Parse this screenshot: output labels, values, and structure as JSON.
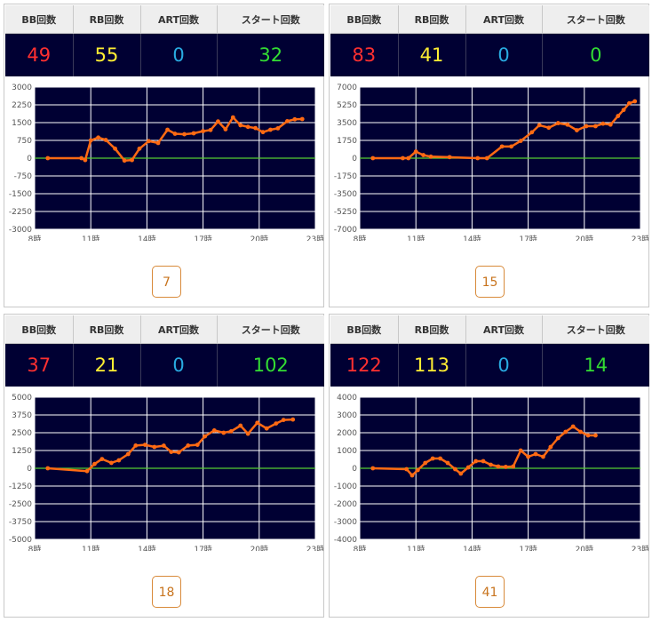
{
  "headers": {
    "bb": "BB回数",
    "rb": "RB回数",
    "art": "ART回数",
    "start": "スタート回数"
  },
  "colors": {
    "plot_bg": "#000033",
    "line": "#ff6a13",
    "zero_line": "#55cc33",
    "bb": "#ff3030",
    "rb": "#ffee33",
    "art": "#29abe2",
    "start": "#33dd33"
  },
  "panels": [
    {
      "bb": "49",
      "rb": "55",
      "art": "0",
      "start": "32",
      "page": "7"
    },
    {
      "bb": "83",
      "rb": "41",
      "art": "0",
      "start": "0",
      "page": "15"
    },
    {
      "bb": "37",
      "rb": "21",
      "art": "0",
      "start": "102",
      "page": "18"
    },
    {
      "bb": "122",
      "rb": "113",
      "art": "0",
      "start": "14",
      "page": "41"
    }
  ],
  "chart_data": [
    {
      "type": "line",
      "x_ticks": [
        "8時",
        "11時",
        "14時",
        "17時",
        "20時",
        "23時"
      ],
      "xlim": [
        8,
        23
      ],
      "y_ticks": [
        "3000",
        "2250",
        "1500",
        "750",
        "0",
        "-750",
        "-1500",
        "-2250",
        "-3000"
      ],
      "ylim": [
        -3000,
        3000
      ],
      "series": [
        {
          "points": [
            [
              8.7,
              0
            ],
            [
              10.5,
              0
            ],
            [
              10.7,
              -80
            ],
            [
              11.0,
              750
            ],
            [
              11.4,
              870
            ],
            [
              11.8,
              770
            ],
            [
              12.3,
              400
            ],
            [
              12.8,
              -100
            ],
            [
              13.2,
              -80
            ],
            [
              13.6,
              400
            ],
            [
              14.1,
              720
            ],
            [
              14.6,
              640
            ],
            [
              15.1,
              1200
            ],
            [
              15.5,
              1030
            ],
            [
              16.0,
              1010
            ],
            [
              16.5,
              1050
            ],
            [
              17.0,
              1140
            ],
            [
              17.4,
              1190
            ],
            [
              17.8,
              1550
            ],
            [
              18.2,
              1220
            ],
            [
              18.6,
              1720
            ],
            [
              19.0,
              1390
            ],
            [
              19.4,
              1320
            ],
            [
              19.8,
              1270
            ],
            [
              20.2,
              1100
            ],
            [
              20.6,
              1200
            ],
            [
              21.0,
              1260
            ],
            [
              21.5,
              1560
            ],
            [
              21.9,
              1640
            ],
            [
              22.3,
              1650
            ]
          ]
        }
      ]
    },
    {
      "type": "line",
      "x_ticks": [
        "8時",
        "11時",
        "14時",
        "17時",
        "20時",
        "23時"
      ],
      "xlim": [
        8,
        23
      ],
      "y_ticks": [
        "7000",
        "5250",
        "3500",
        "1750",
        "0",
        "-1750",
        "-3500",
        "-5250",
        "-7000"
      ],
      "ylim": [
        -7000,
        7000
      ],
      "series": [
        {
          "points": [
            [
              8.7,
              0
            ],
            [
              10.3,
              0
            ],
            [
              10.6,
              0
            ],
            [
              11.0,
              650
            ],
            [
              11.4,
              300
            ],
            [
              11.8,
              150
            ],
            [
              12.8,
              100
            ],
            [
              14.3,
              0
            ],
            [
              14.8,
              0
            ],
            [
              15.6,
              1150
            ],
            [
              16.1,
              1150
            ],
            [
              16.6,
              1700
            ],
            [
              17.2,
              2550
            ],
            [
              17.6,
              3250
            ],
            [
              18.1,
              3000
            ],
            [
              18.6,
              3450
            ],
            [
              19.1,
              3300
            ],
            [
              19.6,
              2750
            ],
            [
              20.1,
              3150
            ],
            [
              20.6,
              3150
            ],
            [
              21.0,
              3400
            ],
            [
              21.4,
              3300
            ],
            [
              21.8,
              4150
            ],
            [
              22.1,
              4750
            ],
            [
              22.4,
              5400
            ],
            [
              22.7,
              5600
            ]
          ]
        }
      ]
    },
    {
      "type": "line",
      "x_ticks": [
        "8時",
        "11時",
        "14時",
        "17時",
        "20時",
        "23時"
      ],
      "xlim": [
        8,
        23
      ],
      "y_ticks": [
        "5000",
        "3750",
        "2500",
        "1250",
        "0",
        "-1250",
        "-2500",
        "-3750",
        "-5000"
      ],
      "ylim": [
        -5000,
        5000
      ],
      "series": [
        {
          "points": [
            [
              8.7,
              0
            ],
            [
              10.8,
              -200
            ],
            [
              11.2,
              300
            ],
            [
              11.6,
              650
            ],
            [
              12.1,
              380
            ],
            [
              12.5,
              560
            ],
            [
              13.0,
              1000
            ],
            [
              13.4,
              1600
            ],
            [
              13.9,
              1650
            ],
            [
              14.4,
              1500
            ],
            [
              14.9,
              1590
            ],
            [
              15.3,
              1150
            ],
            [
              15.7,
              1120
            ],
            [
              16.2,
              1600
            ],
            [
              16.7,
              1650
            ],
            [
              17.1,
              2250
            ],
            [
              17.6,
              2660
            ],
            [
              18.1,
              2500
            ],
            [
              18.5,
              2600
            ],
            [
              19.0,
              3000
            ],
            [
              19.4,
              2430
            ],
            [
              19.9,
              3200
            ],
            [
              20.4,
              2800
            ],
            [
              20.9,
              3150
            ],
            [
              21.3,
              3400
            ],
            [
              21.8,
              3430
            ]
          ]
        }
      ]
    },
    {
      "type": "line",
      "x_ticks": [
        "8時",
        "11時",
        "14時",
        "17時",
        "20時",
        "23時"
      ],
      "xlim": [
        8,
        23
      ],
      "y_ticks": [
        "4000",
        "3000",
        "2000",
        "1000",
        "0",
        "-1000",
        "-2000",
        "-3000",
        "-4000"
      ],
      "ylim": [
        -4000,
        4000
      ],
      "series": [
        {
          "points": [
            [
              8.7,
              0
            ],
            [
              10.5,
              -50
            ],
            [
              10.8,
              -400
            ],
            [
              11.1,
              -100
            ],
            [
              11.5,
              300
            ],
            [
              11.9,
              550
            ],
            [
              12.3,
              550
            ],
            [
              12.7,
              300
            ],
            [
              13.1,
              -50
            ],
            [
              13.4,
              -300
            ],
            [
              13.8,
              50
            ],
            [
              14.2,
              400
            ],
            [
              14.6,
              400
            ],
            [
              15.0,
              200
            ],
            [
              15.4,
              100
            ],
            [
              15.8,
              80
            ],
            [
              16.2,
              100
            ],
            [
              16.6,
              1000
            ],
            [
              17.0,
              650
            ],
            [
              17.4,
              800
            ],
            [
              17.8,
              650
            ],
            [
              18.2,
              1200
            ],
            [
              18.6,
              1700
            ],
            [
              19.0,
              2050
            ],
            [
              19.4,
              2350
            ],
            [
              19.8,
              2050
            ],
            [
              20.2,
              1850
            ],
            [
              20.6,
              1850
            ]
          ]
        }
      ]
    }
  ]
}
